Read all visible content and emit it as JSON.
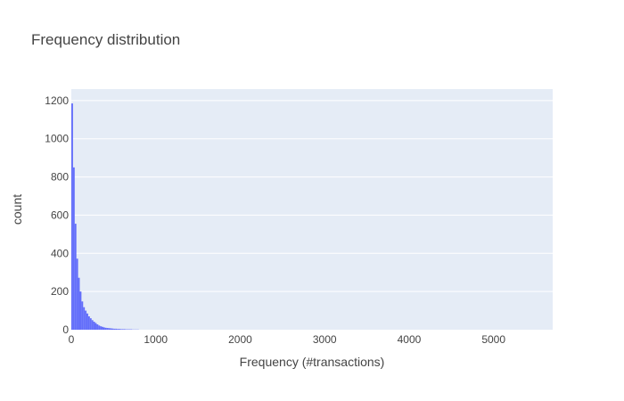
{
  "chart_data": {
    "type": "bar",
    "title": "Frequency distribution",
    "xlabel": "Frequency (#transactions)",
    "ylabel": "count",
    "xlim": [
      0,
      5700
    ],
    "ylim": [
      0,
      1260
    ],
    "xticks": [
      0,
      1000,
      2000,
      3000,
      4000,
      5000
    ],
    "yticks": [
      0,
      200,
      400,
      600,
      800,
      1000,
      1200
    ],
    "xtick_labels": [
      "0",
      "1000",
      "2000",
      "3000",
      "4000",
      "5000"
    ],
    "ytick_labels": [
      "0",
      "200",
      "400",
      "600",
      "800",
      "1000",
      "1200"
    ],
    "grid": true,
    "bin_width": 20,
    "bins": [
      {
        "x0": 0,
        "x1": 20,
        "count": 1185
      },
      {
        "x0": 20,
        "x1": 40,
        "count": 850
      },
      {
        "x0": 40,
        "x1": 60,
        "count": 555
      },
      {
        "x0": 60,
        "x1": 80,
        "count": 372
      },
      {
        "x0": 80,
        "x1": 100,
        "count": 272
      },
      {
        "x0": 100,
        "x1": 120,
        "count": 200
      },
      {
        "x0": 120,
        "x1": 140,
        "count": 148
      },
      {
        "x0": 140,
        "x1": 160,
        "count": 118
      },
      {
        "x0": 160,
        "x1": 180,
        "count": 100
      },
      {
        "x0": 180,
        "x1": 200,
        "count": 85
      },
      {
        "x0": 200,
        "x1": 220,
        "count": 70
      },
      {
        "x0": 220,
        "x1": 240,
        "count": 60
      },
      {
        "x0": 240,
        "x1": 260,
        "count": 50
      },
      {
        "x0": 260,
        "x1": 280,
        "count": 42
      },
      {
        "x0": 280,
        "x1": 300,
        "count": 35
      },
      {
        "x0": 300,
        "x1": 320,
        "count": 28
      },
      {
        "x0": 320,
        "x1": 340,
        "count": 22
      },
      {
        "x0": 340,
        "x1": 360,
        "count": 18
      },
      {
        "x0": 360,
        "x1": 380,
        "count": 15
      },
      {
        "x0": 380,
        "x1": 400,
        "count": 12
      },
      {
        "x0": 400,
        "x1": 420,
        "count": 10
      },
      {
        "x0": 420,
        "x1": 440,
        "count": 9
      },
      {
        "x0": 440,
        "x1": 460,
        "count": 8
      },
      {
        "x0": 460,
        "x1": 480,
        "count": 7
      },
      {
        "x0": 480,
        "x1": 500,
        "count": 6
      },
      {
        "x0": 500,
        "x1": 520,
        "count": 5
      },
      {
        "x0": 520,
        "x1": 540,
        "count": 5
      },
      {
        "x0": 540,
        "x1": 560,
        "count": 4
      },
      {
        "x0": 560,
        "x1": 580,
        "count": 4
      },
      {
        "x0": 580,
        "x1": 600,
        "count": 3
      },
      {
        "x0": 600,
        "x1": 620,
        "count": 3
      },
      {
        "x0": 620,
        "x1": 640,
        "count": 3
      },
      {
        "x0": 640,
        "x1": 660,
        "count": 2
      },
      {
        "x0": 660,
        "x1": 680,
        "count": 2
      },
      {
        "x0": 680,
        "x1": 700,
        "count": 2
      },
      {
        "x0": 700,
        "x1": 720,
        "count": 2
      },
      {
        "x0": 720,
        "x1": 740,
        "count": 1
      },
      {
        "x0": 740,
        "x1": 760,
        "count": 1
      },
      {
        "x0": 760,
        "x1": 780,
        "count": 1
      },
      {
        "x0": 780,
        "x1": 800,
        "count": 1
      }
    ],
    "colors": {
      "bar": "#636efa",
      "plot_bg": "#e5ecf6",
      "grid": "#ffffff",
      "text": "#444444",
      "paper_bg": "#ffffff"
    }
  }
}
